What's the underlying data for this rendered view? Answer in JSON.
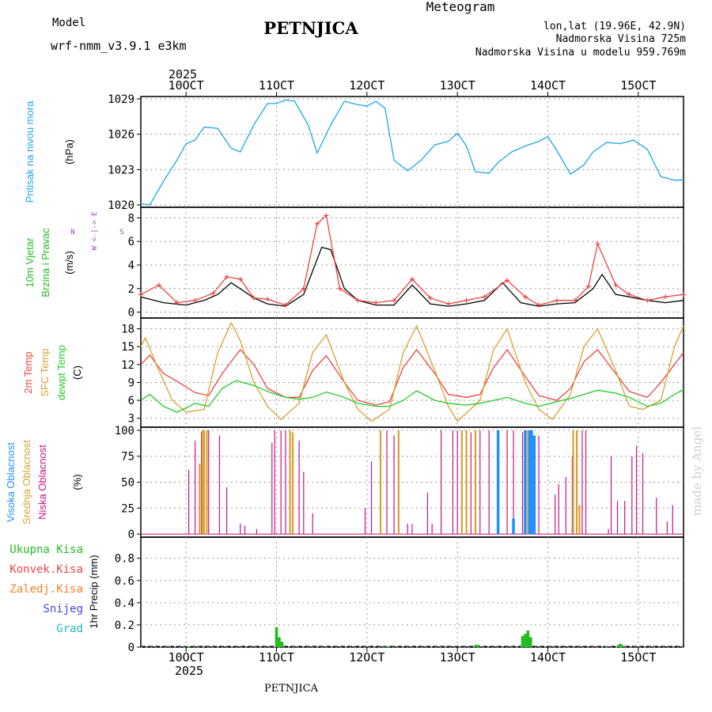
{
  "header": {
    "model_label": "Model",
    "model_name": "wrf-nmm_v3.9.1  e3km",
    "station": "PETNJICA",
    "product": "Meteogram",
    "coords": "lon,lat (19.96E, 42.9N)",
    "elevation": "Nadmorska Visina 725m",
    "model_elevation": "Nadmorska Visina u modelu 959.769m",
    "footer_station": "PETNJICA",
    "credit": "made by Angel"
  },
  "colors": {
    "pressure": "#1ea7e8",
    "wind_label": "#22bb22",
    "temp": "#ee4444",
    "sfc_temp": "#d9a032",
    "dewpoint": "#22cc22",
    "cloud_high": "#1e90ff",
    "cloud_mid": "#d9a032",
    "cloud_low": "#c71585",
    "precip_total": "#22bb22",
    "precip_conv": "#ee4444",
    "precip_frozen": "#ff7f27",
    "precip_snow": "#4444ee",
    "precip_graupel": "#22bbbb",
    "header_purple": "#a040c0",
    "meteogram": "#e6b870"
  },
  "chart_data": {
    "type": "meteogram",
    "time_axis": {
      "year": "2025",
      "tick_labels": [
        "10OCT",
        "11OCT",
        "12OCT",
        "13OCT",
        "14OCT",
        "15OCT"
      ],
      "tick_days": [
        10,
        11,
        12,
        13,
        14,
        15
      ],
      "start_day": 9.5,
      "end_day": 15.5
    },
    "panels": [
      {
        "id": "pressure",
        "ylabel": [
          "Pritisak na nivou mora",
          "(hPa)"
        ],
        "yticks": [
          "1029",
          "1026",
          "1023",
          "1020"
        ],
        "ytick_values": [
          1029,
          1026,
          1023,
          1020
        ],
        "ylim": [
          1019.8,
          1029.2
        ],
        "series": [
          {
            "name": "MSLP",
            "x": [
              9.5,
              9.6,
              9.75,
              9.9,
              10.0,
              10.1,
              10.2,
              10.35,
              10.5,
              10.6,
              10.75,
              10.9,
              11.0,
              11.1,
              11.2,
              11.35,
              11.45,
              11.6,
              11.75,
              11.9,
              12.0,
              12.1,
              12.2,
              12.3,
              12.45,
              12.6,
              12.75,
              12.9,
              13.0,
              13.1,
              13.2,
              13.35,
              13.45,
              13.6,
              13.75,
              13.9,
              14.0,
              14.1,
              14.25,
              14.4,
              14.5,
              14.65,
              14.8,
              14.95,
              15.1,
              15.25,
              15.4,
              15.5
            ],
            "values": [
              1020.1,
              1020.0,
              1022.0,
              1023.8,
              1025.2,
              1025.5,
              1026.6,
              1026.5,
              1024.8,
              1024.5,
              1026.8,
              1028.6,
              1028.6,
              1028.9,
              1028.8,
              1026.8,
              1024.4,
              1026.8,
              1028.8,
              1028.5,
              1028.4,
              1028.8,
              1028.2,
              1023.8,
              1022.9,
              1023.8,
              1025.1,
              1025.4,
              1026.1,
              1025.0,
              1022.8,
              1022.7,
              1023.6,
              1024.5,
              1025.0,
              1025.4,
              1025.8,
              1024.6,
              1022.6,
              1023.4,
              1024.5,
              1025.3,
              1025.2,
              1025.5,
              1024.7,
              1022.4,
              1022.1,
              1022.1
            ]
          }
        ]
      },
      {
        "id": "wind",
        "ylabel": [
          "10m Vjetar",
          "Brzina i Pravac",
          "(m/s)"
        ],
        "compass": "W <-|-> E",
        "compass_ns": [
          "N",
          "S"
        ],
        "yticks": [
          "8",
          "6",
          "4",
          "2",
          "0"
        ],
        "ytick_values": [
          8,
          6,
          4,
          2,
          0
        ],
        "ylim": [
          -0.5,
          8.9
        ],
        "series": [
          {
            "name": "10m wind speed",
            "x": [
              9.5,
              9.75,
              10.0,
              10.2,
              10.35,
              10.5,
              10.75,
              10.9,
              11.1,
              11.3,
              11.5,
              11.6,
              11.75,
              11.9,
              12.1,
              12.3,
              12.5,
              12.7,
              12.9,
              13.1,
              13.3,
              13.5,
              13.7,
              13.9,
              14.1,
              14.3,
              14.5,
              14.6,
              14.75,
              14.9,
              15.1,
              15.3,
              15.5
            ],
            "values": [
              1.3,
              0.8,
              0.6,
              1.0,
              1.5,
              2.5,
              1.2,
              0.7,
              0.5,
              1.5,
              5.5,
              5.3,
              2.0,
              1.0,
              0.6,
              0.6,
              2.3,
              0.7,
              0.5,
              0.7,
              1.0,
              2.5,
              0.8,
              0.5,
              0.7,
              0.8,
              2.0,
              3.2,
              1.5,
              1.3,
              1.0,
              0.8,
              1.0
            ]
          },
          {
            "name": "10m wind gust",
            "x": [
              9.5,
              9.7,
              9.9,
              10.1,
              10.3,
              10.45,
              10.6,
              10.75,
              10.9,
              11.1,
              11.3,
              11.45,
              11.55,
              11.7,
              11.9,
              12.1,
              12.3,
              12.5,
              12.7,
              12.9,
              13.1,
              13.3,
              13.55,
              13.75,
              13.9,
              14.1,
              14.3,
              14.45,
              14.55,
              14.75,
              14.9,
              15.1,
              15.3,
              15.5
            ],
            "values": [
              1.5,
              2.3,
              0.8,
              1.0,
              1.6,
              3.0,
              2.8,
              1.2,
              1.1,
              0.6,
              2.0,
              7.5,
              8.2,
              2.0,
              1.0,
              0.8,
              1.0,
              2.8,
              1.2,
              0.7,
              1.0,
              1.3,
              2.7,
              1.3,
              0.6,
              1.0,
              1.0,
              2.2,
              5.8,
              2.3,
              1.5,
              1.0,
              1.3,
              1.5
            ]
          }
        ]
      },
      {
        "id": "temperature",
        "ylabel": [
          "2m Temp",
          "SFC Temp",
          "dewpt Temp",
          "(C)"
        ],
        "yticks": [
          "18",
          "15",
          "12",
          "9",
          "6",
          "3"
        ],
        "ytick_values": [
          18,
          15,
          12,
          9,
          6,
          3
        ],
        "ylim": [
          1.5,
          19.8
        ],
        "series": [
          {
            "name": "2m Temp",
            "x": [
              9.5,
              9.6,
              9.75,
              9.9,
              10.1,
              10.25,
              10.4,
              10.5,
              10.6,
              10.75,
              10.9,
              11.1,
              11.25,
              11.4,
              11.55,
              11.75,
              11.9,
              12.1,
              12.25,
              12.4,
              12.55,
              12.75,
              12.9,
              13.1,
              13.25,
              13.4,
              13.55,
              13.75,
              13.9,
              14.1,
              14.25,
              14.4,
              14.55,
              14.75,
              14.9,
              15.1,
              15.25,
              15.4,
              15.5
            ],
            "values": [
              12,
              13.6,
              10.5,
              9.2,
              7.3,
              6.8,
              10.5,
              12.5,
              14.5,
              12.0,
              8.0,
              6.5,
              6.5,
              11.0,
              13.5,
              9.0,
              6.0,
              5.2,
              5.8,
              11.5,
              14.5,
              10.5,
              7.0,
              6.5,
              7.0,
              11.5,
              14.5,
              10.0,
              6.8,
              6.0,
              8.0,
              12.5,
              14.5,
              10.5,
              7.5,
              6.5,
              9.0,
              12.0,
              14.0
            ]
          },
          {
            "name": "SFC Temp",
            "x": [
              9.5,
              9.55,
              9.7,
              9.85,
              10.0,
              10.2,
              10.35,
              10.5,
              10.6,
              10.75,
              10.9,
              11.05,
              11.25,
              11.4,
              11.55,
              11.75,
              11.9,
              12.05,
              12.25,
              12.4,
              12.55,
              12.75,
              12.9,
              13.0,
              13.25,
              13.4,
              13.55,
              13.75,
              13.9,
              14.05,
              14.25,
              14.4,
              14.55,
              14.75,
              14.9,
              15.05,
              15.25,
              15.4,
              15.5
            ],
            "values": [
              15.0,
              16.5,
              11.0,
              6.0,
              4.0,
              4.5,
              14.0,
              19.0,
              16.0,
              9.0,
              5.0,
              2.8,
              5.5,
              14.0,
              17.0,
              9.0,
              4.5,
              2.5,
              4.5,
              14.0,
              18.5,
              11.0,
              5.0,
              2.5,
              6.0,
              14.5,
              18.0,
              9.0,
              4.5,
              2.8,
              7.0,
              15.0,
              18.0,
              11.0,
              5.0,
              4.5,
              6.0,
              15.0,
              18.5
            ]
          },
          {
            "name": "dewpt Temp",
            "x": [
              9.5,
              9.6,
              9.75,
              9.9,
              10.1,
              10.25,
              10.4,
              10.55,
              10.75,
              10.9,
              11.1,
              11.25,
              11.4,
              11.55,
              11.75,
              11.9,
              12.1,
              12.25,
              12.4,
              12.55,
              12.75,
              12.9,
              13.1,
              13.25,
              13.4,
              13.55,
              13.75,
              13.9,
              14.1,
              14.25,
              14.4,
              14.55,
              14.75,
              14.9,
              15.1,
              15.25,
              15.4,
              15.5
            ],
            "values": [
              6.0,
              7.0,
              5.0,
              4.0,
              5.5,
              5.0,
              8.0,
              9.3,
              8.5,
              7.5,
              6.5,
              6.2,
              6.5,
              7.4,
              6.5,
              5.5,
              5.0,
              5.0,
              6.0,
              7.6,
              6.0,
              5.5,
              5.2,
              5.5,
              6.0,
              6.5,
              5.5,
              5.0,
              5.8,
              6.3,
              7.0,
              7.7,
              7.2,
              6.5,
              5.0,
              5.5,
              7.0,
              7.8
            ]
          }
        ]
      },
      {
        "id": "clouds",
        "ylabel": [
          "Visoka Oblacnost",
          "Srednja Oblacnost",
          "Niska Oblacnost",
          "(%)"
        ],
        "yticks": [
          "100",
          "75",
          "50",
          "25",
          "0"
        ],
        "ytick_values": [
          100,
          75,
          50,
          25,
          0
        ],
        "ylim": [
          -3,
          103
        ],
        "series": [
          {
            "name": "Niska Oblacnost",
            "x": [
              10.03,
              10.1,
              10.17,
              10.25,
              10.37,
              10.45,
              10.6,
              10.65,
              10.78,
              10.95,
              10.98,
              11.05,
              11.1,
              11.15,
              11.25,
              11.3,
              11.4,
              11.98,
              12.05,
              12.15,
              12.22,
              12.3,
              12.45,
              12.5,
              12.67,
              12.72,
              12.82,
              12.95,
              13.0,
              13.1,
              13.15,
              13.25,
              13.35,
              13.45,
              13.55,
              13.62,
              13.72,
              13.8,
              13.9,
              14.08,
              14.12,
              14.2,
              14.27,
              14.32,
              14.38,
              14.42,
              14.67,
              14.7,
              14.77,
              14.85,
              14.93,
              14.98,
              15.05,
              15.2,
              15.32,
              15.38
            ],
            "values": [
              62,
              90,
              98,
              100,
              95,
              45,
              10,
              8,
              5,
              88,
              100,
              100,
              100,
              100,
              90,
              60,
              20,
              25,
              70,
              98,
              100,
              95,
              10,
              10,
              40,
              10,
              100,
              100,
              100,
              100,
              98,
              100,
              100,
              100,
              100,
              100,
              98,
              90,
              95,
              38,
              48,
              55,
              75,
              95,
              100,
              100,
              5,
              75,
              32,
              32,
              75,
              85,
              78,
              35,
              12,
              28
            ]
          },
          {
            "name": "Srednja Oblacnost",
            "x": [
              10.15,
              10.18,
              10.2,
              10.23,
              11.15,
              11.18,
              12.15,
              12.35,
              13.05,
              13.1,
              13.2,
              13.78,
              13.82,
              14.28,
              14.32,
              14.35
            ],
            "values": [
              68,
              100,
              100,
              100,
              100,
              98,
              100,
              100,
              100,
              100,
              100,
              100,
              100,
              100,
              100,
              28
            ]
          },
          {
            "name": "Visoka Oblacnost",
            "x": [
              13.45,
              13.62,
              13.75,
              13.8,
              13.82,
              13.85
            ],
            "values": [
              100,
              15,
              100,
              100,
              100,
              95
            ]
          }
        ]
      },
      {
        "id": "precip",
        "ylabel": [
          "1hr Precip (mm)"
        ],
        "legend": [
          "Ukupna Kisa",
          "Konvek.Kisa",
          "Zaledj.Kisa",
          "Snijeg",
          "Grad"
        ],
        "yticks": [
          "0.8",
          "0.6",
          "0.4",
          "0.2",
          "0"
        ],
        "ytick_values": [
          0.8,
          0.6,
          0.4,
          0.2,
          0
        ],
        "ylim": [
          0,
          0.99
        ],
        "series": [
          {
            "name": "Ukupna Kisa",
            "x": [
              10.02,
              11.0,
              11.03,
              11.06,
              12.22,
              13.2,
              13.23,
              13.72,
              13.75,
              13.78,
              13.81,
              14.65,
              14.78,
              14.8,
              14.82
            ],
            "values": [
              0.01,
              0.18,
              0.09,
              0.05,
              0.01,
              0.02,
              0.02,
              0.1,
              0.12,
              0.15,
              0.09,
              0.01,
              0.02,
              0.03,
              0.02
            ]
          }
        ]
      }
    ]
  }
}
